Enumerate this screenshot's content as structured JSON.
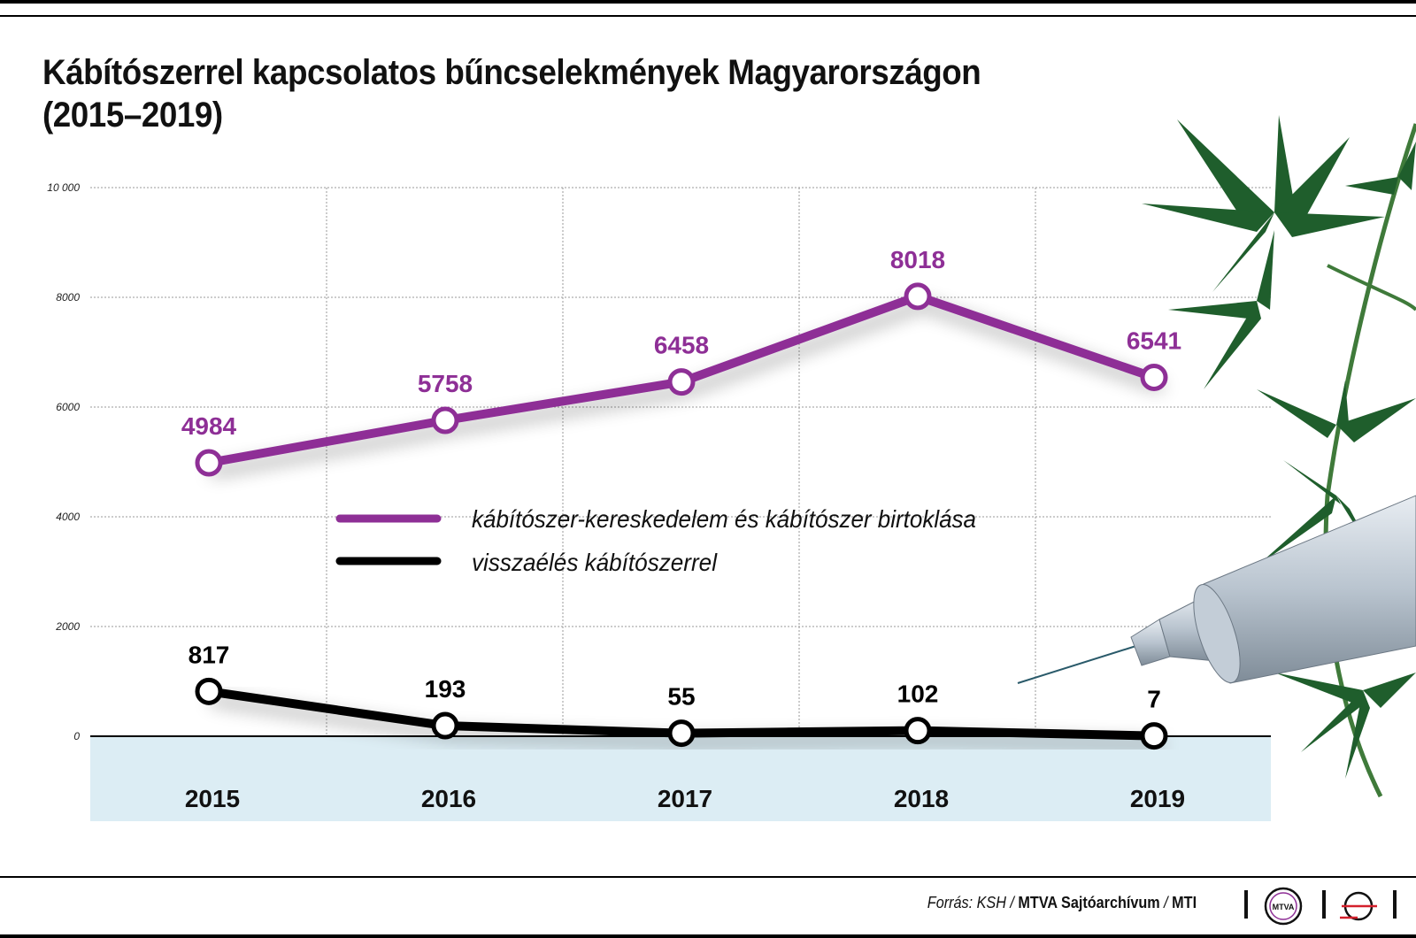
{
  "title": "Kábítószerrel kapcsolatos bűncselekmények Magyarországon (2015–2019)",
  "source_prefix": "Forrás: KSH / ",
  "source_bold": "MTVA Sajtóarchívum",
  "source_sep": " / ",
  "source_mti": "MTI",
  "logo_text": "MTVA",
  "colors": {
    "purple": "#8e2f96",
    "black": "#000000",
    "band": "#dcedf4",
    "grid": "#9a9a9a"
  },
  "chart_data": {
    "type": "line",
    "title": "Kábítószerrel kapcsolatos bűncselekmények Magyarországon (2015–2019)",
    "categories": [
      "2015",
      "2016",
      "2017",
      "2018",
      "2019"
    ],
    "series": [
      {
        "name": "kábítószer-kereskedelem és kábítószer birtoklása",
        "color": "#8e2f96",
        "values": [
          4984,
          5758,
          6458,
          8018,
          6541
        ]
      },
      {
        "name": "visszaélés kábítószerrel",
        "color": "#000000",
        "values": [
          817,
          193,
          55,
          102,
          7
        ]
      }
    ],
    "yticks": [
      "10 000",
      "8000",
      "6000",
      "4000",
      "2000",
      "0"
    ],
    "ylim": [
      0,
      10000
    ],
    "grid": true,
    "legend_position": "center"
  }
}
